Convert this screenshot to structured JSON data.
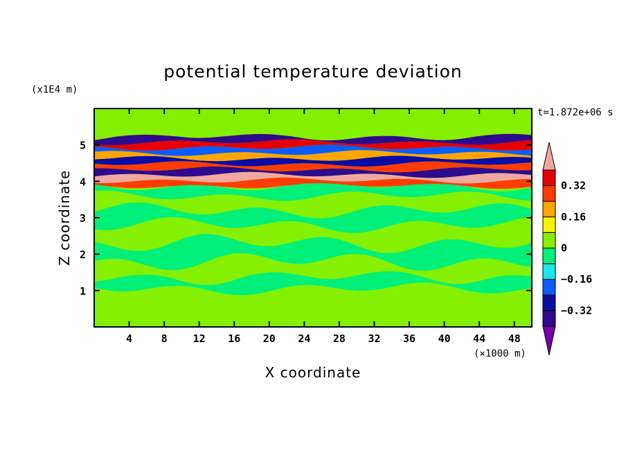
{
  "chart_data": {
    "type": "heatmap",
    "title": "potential temperature deviation",
    "xlabel": "X coordinate",
    "ylabel": "Z coordinate",
    "x_unit": "(×1000 m)",
    "y_unit": "(x1E4 m)",
    "time_label": "t=1.872e+06 s",
    "x_ticks": [
      4,
      8,
      12,
      16,
      20,
      24,
      28,
      32,
      36,
      40,
      44,
      48
    ],
    "x_tick_labels": [
      "4",
      "8",
      "12",
      "16",
      "20",
      "24",
      "28",
      "32",
      "36",
      "40",
      "44",
      "48"
    ],
    "y_ticks": [
      1,
      2,
      3,
      4,
      5
    ],
    "y_tick_labels": [
      "1",
      "2",
      "3",
      "4",
      "5"
    ],
    "xlim": [
      0,
      50
    ],
    "ylim": [
      0,
      6
    ],
    "colorbar": {
      "levels": [
        -0.4,
        -0.32,
        -0.24,
        -0.16,
        -0.08,
        0,
        0.08,
        0.16,
        0.24,
        0.32,
        0.4
      ],
      "tick_values": [
        0.32,
        0.16,
        0,
        -0.16,
        -0.32
      ],
      "tick_labels": [
        "0.32",
        "0.16",
        "0",
        "−0.16",
        "−0.32"
      ],
      "colors": [
        "#7a00a8",
        "#2e0a8c",
        "#0b0ba6",
        "#0a5cff",
        "#16e8ec",
        "#00f07a",
        "#84f000",
        "#f6f600",
        "#ffa500",
        "#ff3c00",
        "#e60000",
        "#f0a8a0"
      ],
      "extend": "both"
    },
    "bands": [
      {
        "z": 0.05,
        "value": 0.05
      },
      {
        "z": 0.55,
        "value": 0.02
      },
      {
        "z": 0.95,
        "value": 0.06
      },
      {
        "z": 1.15,
        "value": -0.04
      },
      {
        "z": 1.6,
        "value": 0.03
      },
      {
        "z": 2.0,
        "value": -0.03
      },
      {
        "z": 2.6,
        "value": 0.02
      },
      {
        "z": 3.0,
        "value": -0.02
      },
      {
        "z": 3.4,
        "value": 0.01
      },
      {
        "z": 3.8,
        "value": -0.05
      },
      {
        "z": 3.95,
        "value": 0.3
      },
      {
        "z": 4.1,
        "value": 0.42
      },
      {
        "z": 4.25,
        "value": -0.35
      },
      {
        "z": 4.4,
        "value": 0.25
      },
      {
        "z": 4.55,
        "value": -0.3
      },
      {
        "z": 4.7,
        "value": 0.2
      },
      {
        "z": 4.85,
        "value": -0.22
      },
      {
        "z": 5.0,
        "value": 0.35
      },
      {
        "z": 5.15,
        "value": -0.33
      },
      {
        "z": 5.3,
        "value": 0.04
      },
      {
        "z": 5.6,
        "value": 0.02
      },
      {
        "z": 6.0,
        "value": 0.05
      }
    ]
  }
}
